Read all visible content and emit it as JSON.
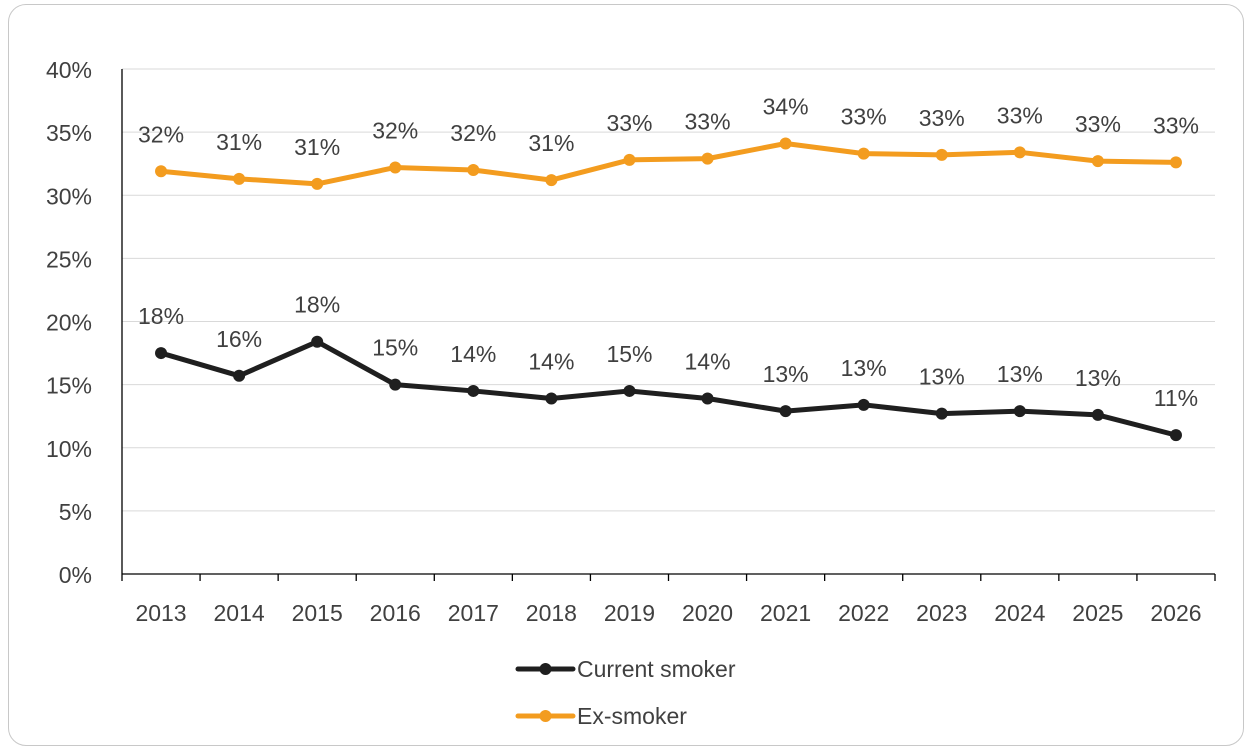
{
  "figure": {
    "title": ""
  },
  "colors": {
    "current": "#1f1f1f",
    "ex": "#f39c1f",
    "grid": "#d9d9d9",
    "axis": "#000000",
    "text": "#404040"
  },
  "chart_data": {
    "type": "line",
    "categories": [
      "2013",
      "2014",
      "2015",
      "2016",
      "2017",
      "2018",
      "2019",
      "2020",
      "2021",
      "2022",
      "2023",
      "2024",
      "2025",
      "2026"
    ],
    "ylim": [
      0,
      40
    ],
    "yticks": [
      0,
      5,
      10,
      15,
      20,
      25,
      30,
      35,
      40
    ],
    "ytick_labels": [
      "0%",
      "5%",
      "10%",
      "15%",
      "20%",
      "25%",
      "30%",
      "35%",
      "40%"
    ],
    "grid": true,
    "legend_position": "bottom",
    "series": [
      {
        "name": "Current smoker",
        "color": "#1f1f1f",
        "values": [
          17.5,
          15.7,
          18.4,
          15.0,
          14.5,
          13.9,
          14.5,
          13.9,
          12.9,
          13.4,
          12.7,
          12.9,
          12.6,
          11.0
        ],
        "labels": [
          "18%",
          "16%",
          "18%",
          "15%",
          "14%",
          "14%",
          "15%",
          "14%",
          "13%",
          "13%",
          "13%",
          "13%",
          "13%",
          "11%"
        ]
      },
      {
        "name": "Ex-smoker",
        "color": "#f39c1f",
        "values": [
          31.9,
          31.3,
          30.9,
          32.2,
          32.0,
          31.2,
          32.8,
          32.9,
          34.1,
          33.3,
          33.2,
          33.4,
          32.7,
          32.6
        ],
        "labels": [
          "32%",
          "31%",
          "31%",
          "32%",
          "32%",
          "31%",
          "33%",
          "33%",
          "34%",
          "33%",
          "33%",
          "33%",
          "33%",
          "33%"
        ]
      }
    ]
  }
}
